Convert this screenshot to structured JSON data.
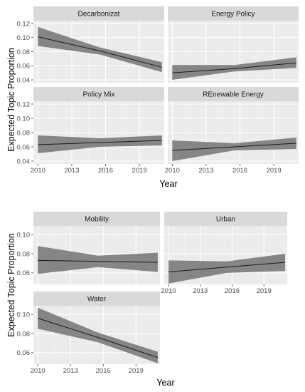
{
  "colors": {
    "panel_bg": "#ebebeb",
    "strip_bg": "#d9d9d9",
    "grid_major": "#ffffff",
    "ribbon": "#808080",
    "line": "#1a1a1a"
  },
  "figures": [
    {
      "xlabel": "Year",
      "ylabel": "Expected Topic Proportion"
    },
    {
      "xlabel": "Year",
      "ylabel": "Expected Topic Proportion"
    }
  ],
  "chart_data": [
    {
      "type": "line",
      "layout": "facet 2x2, shared axes",
      "xlabel": "Year",
      "ylabel": "Expected Topic Proportion",
      "xlim": [
        2009.6,
        2021.2
      ],
      "ylim": [
        0.036,
        0.124
      ],
      "x_ticks": [
        2010,
        2013,
        2016,
        2019
      ],
      "y_ticks": [
        0.04,
        0.06,
        0.08,
        0.1,
        0.12
      ],
      "x_tick_labels": [
        "2010",
        "2013",
        "2016",
        "2019"
      ],
      "y_tick_labels": [
        "0.04",
        "0.06",
        "0.08",
        "0.10",
        "0.12"
      ],
      "grid": true,
      "panels": [
        {
          "title": "Decarbonizat",
          "x": [
            2010,
            2015.5,
            2021
          ],
          "y": [
            0.101,
            0.081,
            0.058
          ],
          "lower": [
            0.088,
            0.076,
            0.051
          ],
          "upper": [
            0.115,
            0.086,
            0.065
          ]
        },
        {
          "title": "Energy Policy",
          "x": [
            2010,
            2015.5,
            2021
          ],
          "y": [
            0.05,
            0.056,
            0.064
          ],
          "lower": [
            0.04,
            0.052,
            0.057
          ],
          "upper": [
            0.061,
            0.061,
            0.072
          ]
        },
        {
          "title": "Policy Mix",
          "x": [
            2010,
            2015.5,
            2021
          ],
          "y": [
            0.063,
            0.066,
            0.069
          ],
          "lower": [
            0.051,
            0.06,
            0.062
          ],
          "upper": [
            0.076,
            0.072,
            0.076
          ]
        },
        {
          "title": "REnewable Energy",
          "x": [
            2010,
            2015.5,
            2021
          ],
          "y": [
            0.055,
            0.06,
            0.065
          ],
          "lower": [
            0.04,
            0.055,
            0.057
          ],
          "upper": [
            0.069,
            0.065,
            0.073
          ]
        }
      ]
    },
    {
      "type": "line",
      "layout": "facet 2x2, shared axes",
      "xlabel": "Year",
      "ylabel": "Expected Topic Proportion",
      "xlim": [
        2009.6,
        2021.2
      ],
      "ylim": [
        0.048,
        0.109
      ],
      "x_ticks": [
        2010,
        2013,
        2016,
        2019
      ],
      "y_ticks": [
        0.06,
        0.08,
        0.1
      ],
      "x_tick_labels": [
        "2010",
        "2013",
        "2016",
        "2019"
      ],
      "y_tick_labels": [
        "0.06",
        "0.08",
        "0.10"
      ],
      "grid": true,
      "panels": [
        {
          "title": "Mobility",
          "x": [
            2010,
            2015.5,
            2021
          ],
          "y": [
            0.073,
            0.072,
            0.071
          ],
          "lower": [
            0.059,
            0.066,
            0.061
          ],
          "upper": [
            0.088,
            0.078,
            0.081
          ]
        },
        {
          "title": "Urban",
          "x": [
            2010,
            2015.5,
            2021
          ],
          "y": [
            0.061,
            0.066,
            0.071
          ],
          "lower": [
            0.049,
            0.06,
            0.062
          ],
          "upper": [
            0.073,
            0.072,
            0.08
          ]
        },
        {
          "title": "Water",
          "x": [
            2010,
            2015.5,
            2021
          ],
          "y": [
            0.096,
            0.076,
            0.055
          ],
          "lower": [
            0.085,
            0.071,
            0.049
          ],
          "upper": [
            0.107,
            0.081,
            0.061
          ]
        }
      ]
    }
  ]
}
